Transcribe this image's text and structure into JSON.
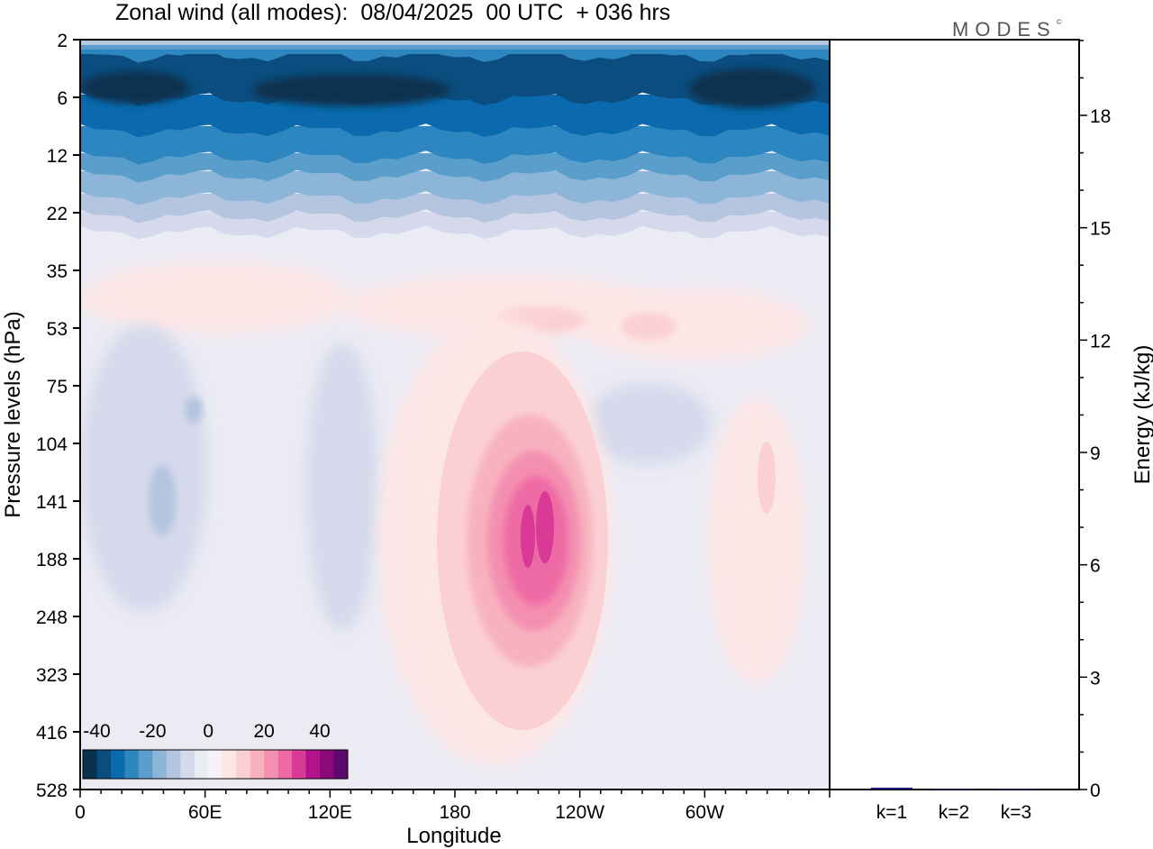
{
  "header": {
    "title": "Zonal wind (all modes):  08/04/2025  00 UTC  + 036 hrs",
    "brand": "MODES",
    "brand_mark": "©"
  },
  "chart_data": [
    {
      "type": "heatmap",
      "title": "Zonal wind (all modes):  08/04/2025  00 UTC  + 036 hrs",
      "xlabel": "Longitude",
      "ylabel": "Pressure levels (hPa)",
      "x_ticks": [
        "0",
        "60E",
        "120E",
        "180",
        "120W",
        "60W"
      ],
      "y_ticks": [
        "2",
        "6",
        "12",
        "22",
        "35",
        "53",
        "75",
        "104",
        "141",
        "188",
        "248",
        "323",
        "416",
        "528"
      ],
      "colorbar": {
        "tick_labels": [
          "-40",
          "-20",
          "0",
          "20",
          "40"
        ],
        "levels": [
          -45,
          -40,
          -35,
          -30,
          -25,
          -20,
          -15,
          -10,
          -5,
          0,
          5,
          10,
          15,
          20,
          25,
          30,
          35,
          40,
          45
        ],
        "colors": [
          "#08304f",
          "#0b4d7e",
          "#0a6aad",
          "#2d86bf",
          "#5a9fcc",
          "#8cb5d8",
          "#b4c5e0",
          "#d5d9eb",
          "#ebebf4",
          "#f7f2f6",
          "#fde6e6",
          "#fbd0d3",
          "#f7b2be",
          "#f48fb1",
          "#ee6aa4",
          "#d93a96",
          "#b3138a",
          "#8a0a7b",
          "#5c0a6e"
        ]
      },
      "features": [
        {
          "name": "stratospheric easterly band",
          "pressure_hPa": [
            2,
            22
          ],
          "value_min": -45
        },
        {
          "name": "weak westerly layer",
          "pressure_hPa": [
            30,
            75
          ],
          "value_max": 10
        },
        {
          "name": "upper-tropospheric westerly maximum",
          "longitude": 205,
          "pressure_hPa": [
            100,
            330
          ],
          "value_max": 25
        },
        {
          "name": "weak easterlies",
          "pressure_hPa": [
            75,
            528
          ],
          "value_min": -10
        }
      ]
    },
    {
      "type": "bar",
      "categories": [
        "k=1",
        "k=2",
        "k=3"
      ],
      "values": [
        0.05,
        0.02,
        0.02
      ],
      "ylabel": "Energy (kJ/kg)",
      "ylim": [
        0,
        20
      ],
      "y_ticks": [
        "0",
        "3",
        "6",
        "9",
        "12",
        "15",
        "18"
      ],
      "bar_color": "#1a1a7a"
    }
  ]
}
